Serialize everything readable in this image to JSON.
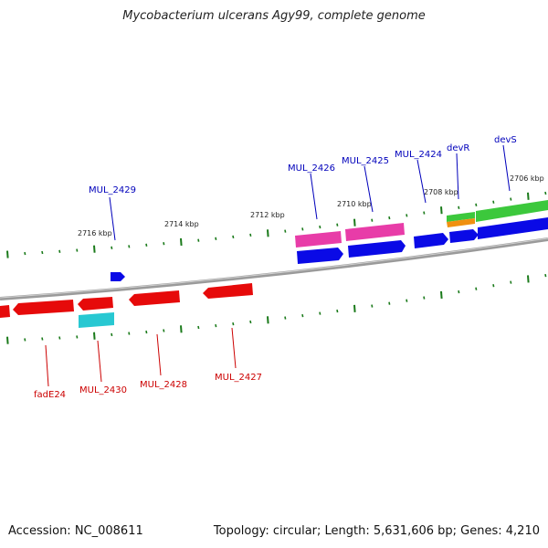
{
  "title": "Mycobacterium ulcerans Agy99, complete genome",
  "footer": {
    "accession": "Accession: NC_008611",
    "summary": "Topology: circular; Length: 5,631,606 bp; Genes: 4,210"
  },
  "colors": {
    "backbone": "#8a8a8a",
    "tick": "#1a7a1a",
    "forward_label": "#0000bb",
    "reverse_label": "#cc0000",
    "blue": "#0a0ae6",
    "pink": "#e83ca8",
    "green": "#3cc83c",
    "orange": "#f09010",
    "red": "#e60a0a",
    "cyan": "#28c8d2"
  },
  "kbp_labels": [
    "2716 kbp",
    "2714 kbp",
    "2712 kbp",
    "2710 kbp",
    "2708 kbp",
    "2706 kbp"
  ],
  "forward_genes": [
    "MUL_2429",
    "MUL_2426",
    "MUL_2425",
    "MUL_2424",
    "devR",
    "devS"
  ],
  "reverse_genes": [
    "fadE24",
    "MUL_2430",
    "MUL_2428",
    "MUL_2427"
  ]
}
